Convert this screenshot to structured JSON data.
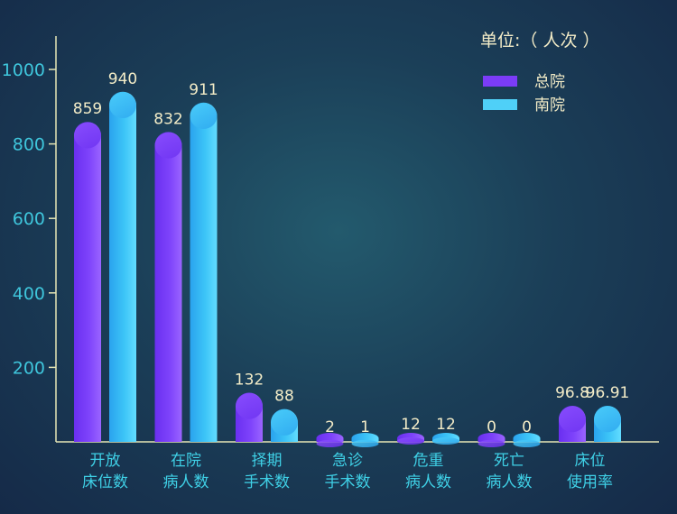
{
  "chart_data": {
    "type": "bar",
    "unit_label": "单位:（ 人次 ）",
    "categories": [
      [
        "开放",
        "床位数"
      ],
      [
        "在院",
        "病人数"
      ],
      [
        "择期",
        "手术数"
      ],
      [
        "急诊",
        "手术数"
      ],
      [
        "危重",
        "病人数"
      ],
      [
        "死亡",
        "病人数"
      ],
      [
        "床位",
        "使用率"
      ]
    ],
    "series": [
      {
        "name": "总院",
        "color": "#7b3cf7",
        "color_light": "#9b62ff",
        "values": [
          859,
          832,
          132,
          2,
          12,
          0,
          96.8
        ],
        "labels": [
          "859",
          "832",
          "132",
          "2",
          "12",
          "0",
          "96.8"
        ]
      },
      {
        "name": "南院",
        "color": "#2fb6f2",
        "color_light": "#5fdcff",
        "values": [
          940,
          911,
          88,
          1,
          12,
          0,
          96.91
        ],
        "labels": [
          "940",
          "911",
          "88",
          "1",
          "12",
          "0",
          "96.91"
        ]
      }
    ],
    "y_ticks": [
      200,
      400,
      600,
      800,
      1000
    ],
    "ylim": [
      0,
      1000
    ],
    "legend_position": "top-right",
    "grid": false
  }
}
